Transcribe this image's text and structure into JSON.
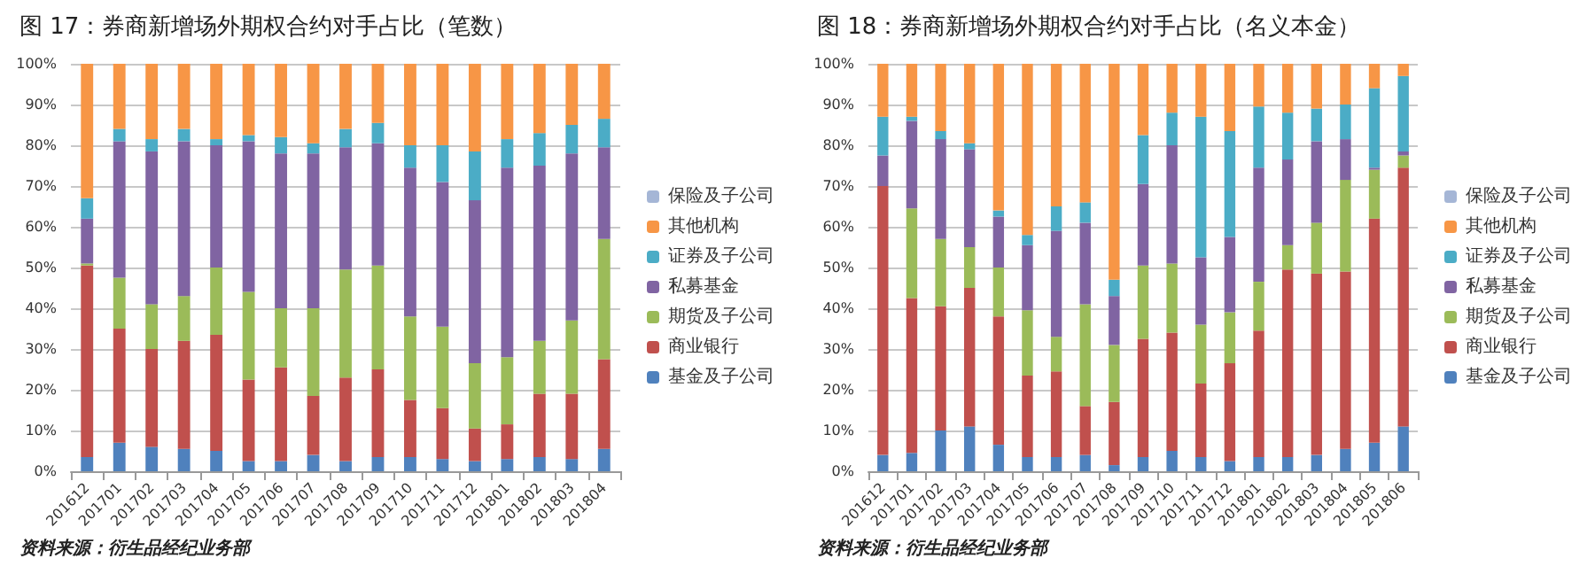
{
  "chart_data": [
    {
      "type": "bar",
      "title": "图 17：券商新增场外期权合约对手占比（笔数）",
      "stacked": true,
      "legend": "right",
      "grid": "y",
      "categories": [
        "201612",
        "201701",
        "201702",
        "201703",
        "201704",
        "201705",
        "201706",
        "201707",
        "201708",
        "201709",
        "201710",
        "201711",
        "201712",
        "201801",
        "201802",
        "201803",
        "201804"
      ],
      "ylim": [
        0,
        100
      ],
      "yticks": [
        {
          "value": 0,
          "label": "0%"
        },
        {
          "value": 10,
          "label": "10%"
        },
        {
          "value": 20,
          "label": "20%"
        },
        {
          "value": 30,
          "label": "30%"
        },
        {
          "value": 40,
          "label": "40%"
        },
        {
          "value": 50,
          "label": "50%"
        },
        {
          "value": 60,
          "label": "60%"
        },
        {
          "value": 70,
          "label": "70%"
        },
        {
          "value": 80,
          "label": "80%"
        },
        {
          "value": 90,
          "label": "90%"
        },
        {
          "value": 100,
          "label": "100%"
        }
      ],
      "series": [
        {
          "name": "基金及子公司",
          "color": "#4f81bd",
          "values": [
            3.5,
            7,
            6,
            5.5,
            5,
            2.5,
            2.5,
            4,
            2.5,
            3.5,
            3.5,
            3,
            2.5,
            3,
            3.5,
            3,
            5.5
          ]
        },
        {
          "name": "商业银行",
          "color": "#c0504d",
          "values": [
            47,
            28,
            24,
            26.5,
            28.5,
            20,
            23,
            14.5,
            20.5,
            21.5,
            14,
            12.5,
            8,
            8.5,
            15.5,
            16,
            22
          ]
        },
        {
          "name": "期货及子公司",
          "color": "#9bbb59",
          "values": [
            0.5,
            12.5,
            11,
            11,
            16.5,
            21.5,
            14.5,
            21.5,
            26.5,
            25.5,
            20.5,
            20,
            16,
            16.5,
            13,
            18,
            29.5
          ]
        },
        {
          "name": "私募基金",
          "color": "#8064a2",
          "values": [
            11,
            33.5,
            37.5,
            38,
            30,
            37,
            38,
            38,
            30,
            30,
            36.5,
            35.5,
            40,
            46.5,
            43,
            41,
            22.5
          ]
        },
        {
          "name": "证券及子公司",
          "color": "#4bacc6",
          "values": [
            5,
            3,
            3,
            3,
            1.5,
            1.5,
            4,
            2.5,
            4.5,
            5,
            5.5,
            9,
            12,
            7,
            8,
            7,
            7
          ]
        },
        {
          "name": "其他机构",
          "color": "#f79646",
          "values": [
            33,
            16,
            18.5,
            16,
            18.5,
            17.5,
            18,
            19.5,
            16,
            14.5,
            20,
            20,
            21.5,
            18.5,
            17,
            15,
            13.5
          ]
        },
        {
          "name": "保险及子公司",
          "color": "#a5b6d6",
          "values": [
            0,
            0,
            0,
            0,
            0,
            0,
            0,
            0,
            0,
            0,
            0,
            0,
            0,
            0,
            0,
            0,
            0
          ]
        }
      ],
      "annotations": [
        "资料来源：衍生品经纪业务部"
      ]
    },
    {
      "type": "bar",
      "title": "图 18：券商新增场外期权合约对手占比（名义本金）",
      "stacked": true,
      "legend": "right",
      "grid": "y",
      "categories": [
        "201612",
        "201701",
        "201702",
        "201703",
        "201704",
        "201705",
        "201706",
        "201707",
        "201708",
        "201709",
        "201710",
        "201711",
        "201712",
        "201801",
        "201802",
        "201803",
        "201804",
        "201805",
        "201806"
      ],
      "ylim": [
        0,
        100
      ],
      "yticks": [
        {
          "value": 0,
          "label": "0%"
        },
        {
          "value": 10,
          "label": "10%"
        },
        {
          "value": 20,
          "label": "20%"
        },
        {
          "value": 30,
          "label": "30%"
        },
        {
          "value": 40,
          "label": "40%"
        },
        {
          "value": 50,
          "label": "50%"
        },
        {
          "value": 60,
          "label": "60%"
        },
        {
          "value": 70,
          "label": "70%"
        },
        {
          "value": 80,
          "label": "80%"
        },
        {
          "value": 90,
          "label": "90%"
        },
        {
          "value": 100,
          "label": "100%"
        }
      ],
      "series": [
        {
          "name": "基金及子公司",
          "color": "#4f81bd",
          "values": [
            4,
            4.5,
            10,
            11,
            6.5,
            3.5,
            3.5,
            4,
            1.5,
            3.5,
            5,
            3.5,
            2.5,
            3.5,
            3.5,
            4,
            5.5,
            7,
            11
          ]
        },
        {
          "name": "商业银行",
          "color": "#c0504d",
          "values": [
            66,
            38,
            30.5,
            34,
            31.5,
            20,
            21,
            12,
            15.5,
            29,
            29,
            18,
            24,
            31,
            46,
            44.5,
            43.5,
            55,
            63.5
          ]
        },
        {
          "name": "期货及子公司",
          "color": "#9bbb59",
          "values": [
            0,
            22,
            16.5,
            10,
            12,
            16,
            8.5,
            25,
            14,
            18,
            17,
            14.5,
            12.5,
            12,
            6,
            12.5,
            22.5,
            12,
            3
          ]
        },
        {
          "name": "私募基金",
          "color": "#8064a2",
          "values": [
            7.5,
            21.5,
            24.5,
            24,
            12.5,
            16,
            26,
            20,
            12,
            20,
            29,
            16.5,
            18.5,
            28,
            21,
            20,
            10,
            0.5,
            1
          ]
        },
        {
          "name": "证券及子公司",
          "color": "#4bacc6",
          "values": [
            9.5,
            1,
            2,
            1.5,
            1.5,
            2.5,
            6,
            5,
            4,
            12,
            8,
            34.5,
            26,
            15,
            11.5,
            8,
            8.5,
            19.5,
            18.5
          ]
        },
        {
          "name": "其他机构",
          "color": "#f79646",
          "values": [
            13,
            13,
            16.5,
            19.5,
            36,
            42,
            35,
            34,
            53,
            17.5,
            12,
            13,
            16.5,
            10.5,
            12,
            11,
            10,
            6,
            3
          ]
        },
        {
          "name": "保险及子公司",
          "color": "#a5b6d6",
          "values": [
            0,
            0,
            0,
            0,
            0,
            0,
            0,
            0,
            0,
            0,
            0,
            0,
            0,
            0,
            0,
            0,
            0,
            0,
            0
          ]
        }
      ],
      "annotations": [
        "资料来源：衍生品经纪业务部"
      ]
    }
  ]
}
